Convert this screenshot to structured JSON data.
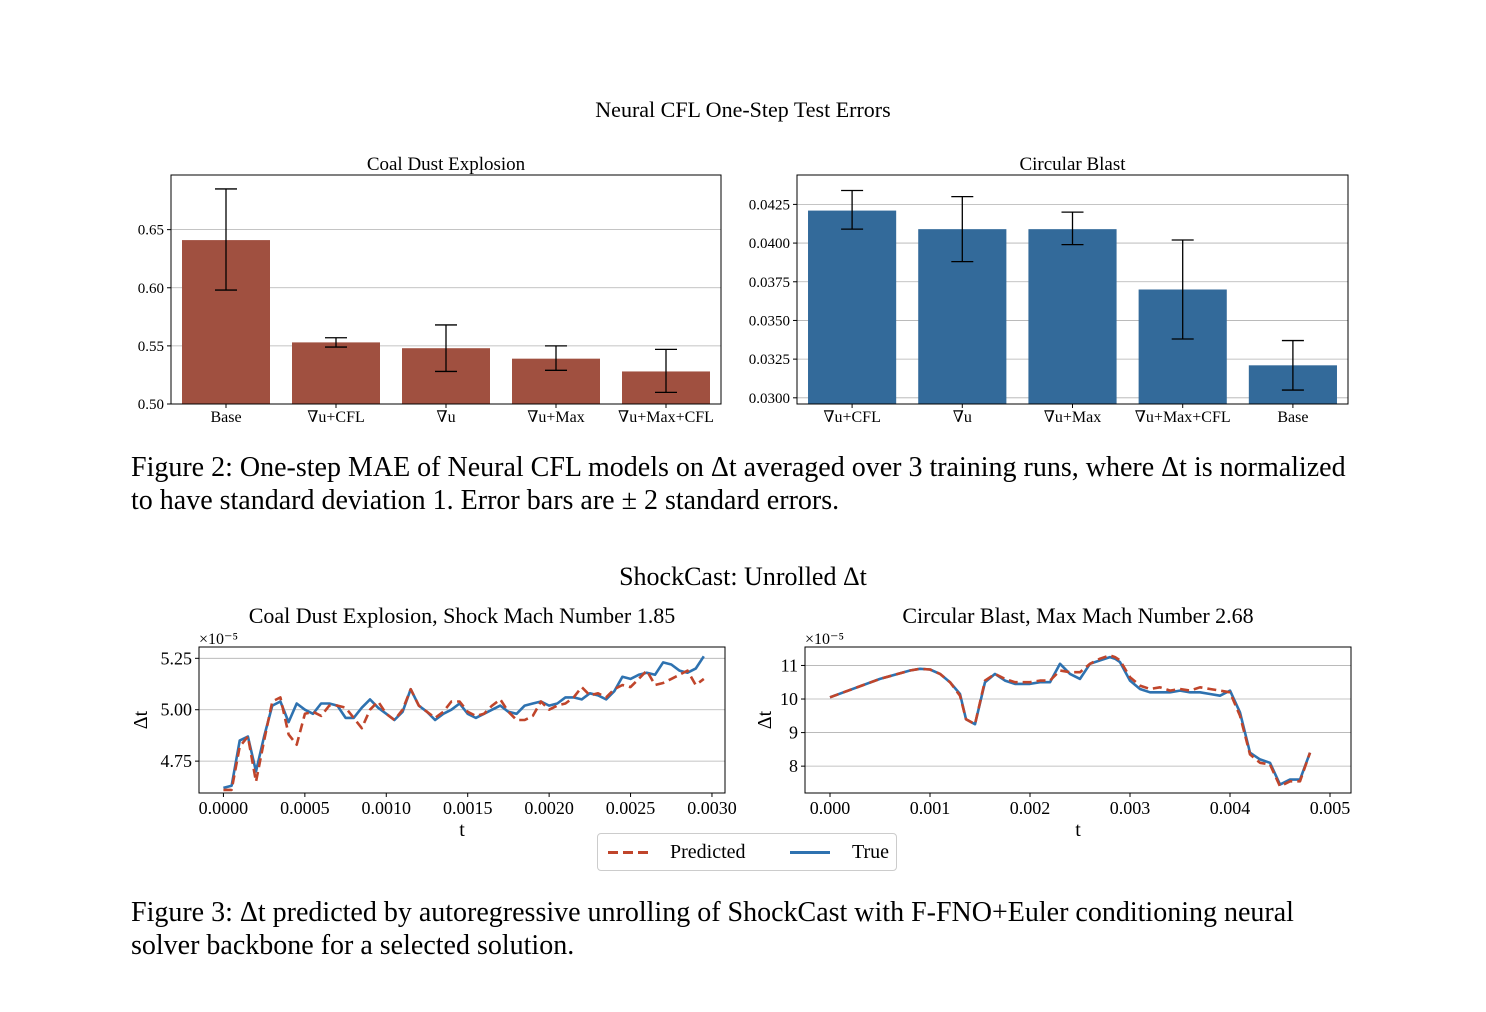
{
  "figure2": {
    "suptitle": "Neural CFL One-Step Test Errors",
    "caption": "Figure 2: One-step MAE of Neural CFL models on Δt averaged over 3 training runs, where Δt is normalized to have standard deviation 1. Error bars are ± 2 standard errors."
  },
  "figure3": {
    "suptitle": "ShockCast: Unrolled Δt",
    "caption": "Figure 3: Δt predicted by autoregressive unrolling of ShockCast with F-FNO+Euler conditioning neural solver backbone for a selected solution.",
    "legend": {
      "predicted": "Predicted",
      "true": "True"
    }
  },
  "colors": {
    "coal_bar": "#a05040",
    "blast_bar": "#336a9a",
    "predicted_line": "#c0452b",
    "true_line": "#2e72b0"
  },
  "chart_data": [
    {
      "type": "bar",
      "title": "Coal Dust Explosion",
      "categories": [
        "Base",
        "∇u+CFL",
        "∇u",
        "∇u+Max",
        "∇u+Max+CFL"
      ],
      "values": [
        0.641,
        0.553,
        0.548,
        0.539,
        0.528
      ],
      "error_low": [
        0.598,
        0.549,
        0.528,
        0.529,
        0.51
      ],
      "error_high": [
        0.685,
        0.557,
        0.568,
        0.55,
        0.547
      ],
      "yticks": [
        "0.50",
        "0.55",
        "0.60",
        "0.65"
      ],
      "ylim": [
        0.5,
        0.697
      ],
      "grid": "y"
    },
    {
      "type": "bar",
      "title": "Circular Blast",
      "categories": [
        "∇u+CFL",
        "∇u",
        "∇u+Max",
        "∇u+Max+CFL",
        "Base"
      ],
      "values": [
        0.0421,
        0.0409,
        0.0409,
        0.037,
        0.0321
      ],
      "error_low": [
        0.0409,
        0.0388,
        0.0399,
        0.0338,
        0.0305
      ],
      "error_high": [
        0.0434,
        0.043,
        0.042,
        0.0402,
        0.0337
      ],
      "yticks": [
        "0.0300",
        "0.0325",
        "0.0350",
        "0.0375",
        "0.0400",
        "0.0425"
      ],
      "ylim": [
        0.0296,
        0.0444
      ],
      "grid": "y"
    },
    {
      "type": "line",
      "title": "Coal Dust Explosion, Shock Mach Number 1.85",
      "xlabel": "t",
      "ylabel": "Δt",
      "offset_label": "×10⁻⁵",
      "xticks": [
        "0.0000",
        "0.0005",
        "0.0010",
        "0.0015",
        "0.0020",
        "0.0025",
        "0.0030"
      ],
      "yticks": [
        "4.75",
        "5.00",
        "5.25"
      ],
      "xlim": [
        -0.00015,
        0.00308
      ],
      "ylim": [
        4.595,
        5.305
      ],
      "series": [
        {
          "name": "Predicted",
          "x": [
            0.0,
            5e-05,
            0.0001,
            0.00015,
            0.0002,
            0.00025,
            0.0003,
            0.00035,
            0.0004,
            0.00045,
            0.0005,
            0.00055,
            0.0006,
            0.00065,
            0.0007,
            0.00075,
            0.0008,
            0.00085,
            0.0009,
            0.00095,
            0.001,
            0.00105,
            0.0011,
            0.00115,
            0.0012,
            0.00125,
            0.0013,
            0.00135,
            0.0014,
            0.00145,
            0.0015,
            0.00155,
            0.0016,
            0.00165,
            0.0017,
            0.00175,
            0.0018,
            0.00185,
            0.0019,
            0.00195,
            0.002,
            0.00205,
            0.0021,
            0.00215,
            0.0022,
            0.00225,
            0.0023,
            0.00235,
            0.0024,
            0.00245,
            0.0025,
            0.00255,
            0.0026,
            0.00265,
            0.0027,
            0.00275,
            0.0028,
            0.00285,
            0.0029,
            0.00295
          ],
          "values": [
            4.61,
            4.61,
            4.82,
            4.87,
            4.65,
            4.85,
            5.04,
            5.06,
            4.88,
            4.83,
            4.98,
            4.99,
            4.97,
            5.02,
            5.02,
            5.01,
            4.96,
            4.91,
            5.0,
            5.04,
            4.98,
            4.95,
            5.0,
            5.1,
            5.02,
            4.99,
            4.96,
            4.99,
            5.04,
            5.04,
            4.99,
            4.97,
            4.98,
            5.02,
            5.05,
            4.99,
            4.95,
            4.95,
            4.97,
            5.04,
            5.0,
            5.02,
            5.03,
            5.06,
            5.11,
            5.07,
            5.08,
            5.06,
            5.1,
            5.12,
            5.11,
            5.15,
            5.19,
            5.12,
            5.13,
            5.15,
            5.17,
            5.19,
            5.12,
            5.15
          ]
        },
        {
          "name": "True",
          "x": [
            0.0,
            5e-05,
            0.0001,
            0.00015,
            0.0002,
            0.00025,
            0.0003,
            0.00035,
            0.0004,
            0.00045,
            0.0005,
            0.00055,
            0.0006,
            0.00065,
            0.0007,
            0.00075,
            0.0008,
            0.00085,
            0.0009,
            0.00095,
            0.001,
            0.00105,
            0.0011,
            0.00115,
            0.0012,
            0.00125,
            0.0013,
            0.00135,
            0.0014,
            0.00145,
            0.0015,
            0.00155,
            0.0016,
            0.00165,
            0.0017,
            0.00175,
            0.0018,
            0.00185,
            0.0019,
            0.00195,
            0.002,
            0.00205,
            0.0021,
            0.00215,
            0.0022,
            0.00225,
            0.0023,
            0.00235,
            0.0024,
            0.00245,
            0.0025,
            0.00255,
            0.0026,
            0.00265,
            0.0027,
            0.00275,
            0.0028,
            0.00285,
            0.0029,
            0.00295
          ],
          "values": [
            4.62,
            4.63,
            4.85,
            4.87,
            4.7,
            4.87,
            5.02,
            5.04,
            4.94,
            5.03,
            5.0,
            4.98,
            5.03,
            5.03,
            5.02,
            4.96,
            4.96,
            5.01,
            5.05,
            5.01,
            4.98,
            4.95,
            4.99,
            5.1,
            5.02,
            4.99,
            4.95,
            4.98,
            5.0,
            5.03,
            4.98,
            4.96,
            4.98,
            5.0,
            5.02,
            4.99,
            4.98,
            5.02,
            5.03,
            5.04,
            5.02,
            5.03,
            5.06,
            5.06,
            5.05,
            5.08,
            5.07,
            5.05,
            5.09,
            5.16,
            5.15,
            5.17,
            5.18,
            5.17,
            5.23,
            5.22,
            5.19,
            5.18,
            5.2,
            5.26
          ]
        }
      ]
    },
    {
      "type": "line",
      "title": "Circular Blast, Max Mach Number 2.68",
      "xlabel": "t",
      "ylabel": "Δt",
      "offset_label": "×10⁻⁵",
      "xticks": [
        "0.000",
        "0.001",
        "0.002",
        "0.003",
        "0.004",
        "0.005"
      ],
      "yticks": [
        "8",
        "9",
        "10",
        "11"
      ],
      "xlim": [
        -0.00025,
        0.00521
      ],
      "ylim": [
        7.2,
        11.55
      ],
      "series": [
        {
          "name": "Predicted",
          "x": [
            0.0,
            0.0005,
            0.0008,
            0.0009,
            0.001,
            0.0011,
            0.0012,
            0.0013,
            0.00136,
            0.00145,
            0.00155,
            0.00165,
            0.00175,
            0.00185,
            0.002,
            0.0021,
            0.0022,
            0.0023,
            0.0024,
            0.0025,
            0.0026,
            0.0027,
            0.0028,
            0.00285,
            0.0029,
            0.003,
            0.0031,
            0.0032,
            0.0033,
            0.0034,
            0.0035,
            0.0036,
            0.0037,
            0.0038,
            0.0039,
            0.004,
            0.0041,
            0.0042,
            0.0043,
            0.0044,
            0.0045,
            0.0046,
            0.0047,
            0.0048
          ],
          "values": [
            10.05,
            10.6,
            10.85,
            10.9,
            10.88,
            10.75,
            10.5,
            10.1,
            9.4,
            9.25,
            10.55,
            10.75,
            10.6,
            10.5,
            10.5,
            10.55,
            10.55,
            10.85,
            10.8,
            10.8,
            11.05,
            11.2,
            11.3,
            11.25,
            11.15,
            10.65,
            10.4,
            10.3,
            10.35,
            10.25,
            10.3,
            10.25,
            10.35,
            10.3,
            10.25,
            10.2,
            9.5,
            8.35,
            8.1,
            8.05,
            7.4,
            7.55,
            7.55,
            8.4
          ]
        },
        {
          "name": "True",
          "x": [
            0.0,
            0.0005,
            0.0008,
            0.0009,
            0.001,
            0.0011,
            0.0012,
            0.0013,
            0.00136,
            0.00145,
            0.00155,
            0.00165,
            0.00175,
            0.00185,
            0.002,
            0.0021,
            0.0022,
            0.0023,
            0.0024,
            0.0025,
            0.0026,
            0.0027,
            0.0028,
            0.00285,
            0.0029,
            0.003,
            0.0031,
            0.0032,
            0.0033,
            0.0034,
            0.0035,
            0.0036,
            0.0037,
            0.0038,
            0.0039,
            0.004,
            0.0041,
            0.0042,
            0.0043,
            0.0044,
            0.0045,
            0.0046,
            0.0047,
            0.0048
          ],
          "values": [
            10.05,
            10.6,
            10.85,
            10.9,
            10.88,
            10.75,
            10.5,
            10.15,
            9.4,
            9.25,
            10.5,
            10.75,
            10.55,
            10.45,
            10.45,
            10.5,
            10.5,
            11.05,
            10.75,
            10.6,
            11.05,
            11.15,
            11.25,
            11.2,
            11.1,
            10.55,
            10.3,
            10.2,
            10.2,
            10.2,
            10.25,
            10.2,
            10.2,
            10.15,
            10.1,
            10.25,
            9.6,
            8.4,
            8.2,
            8.1,
            7.45,
            7.6,
            7.6,
            8.4
          ]
        }
      ]
    }
  ]
}
